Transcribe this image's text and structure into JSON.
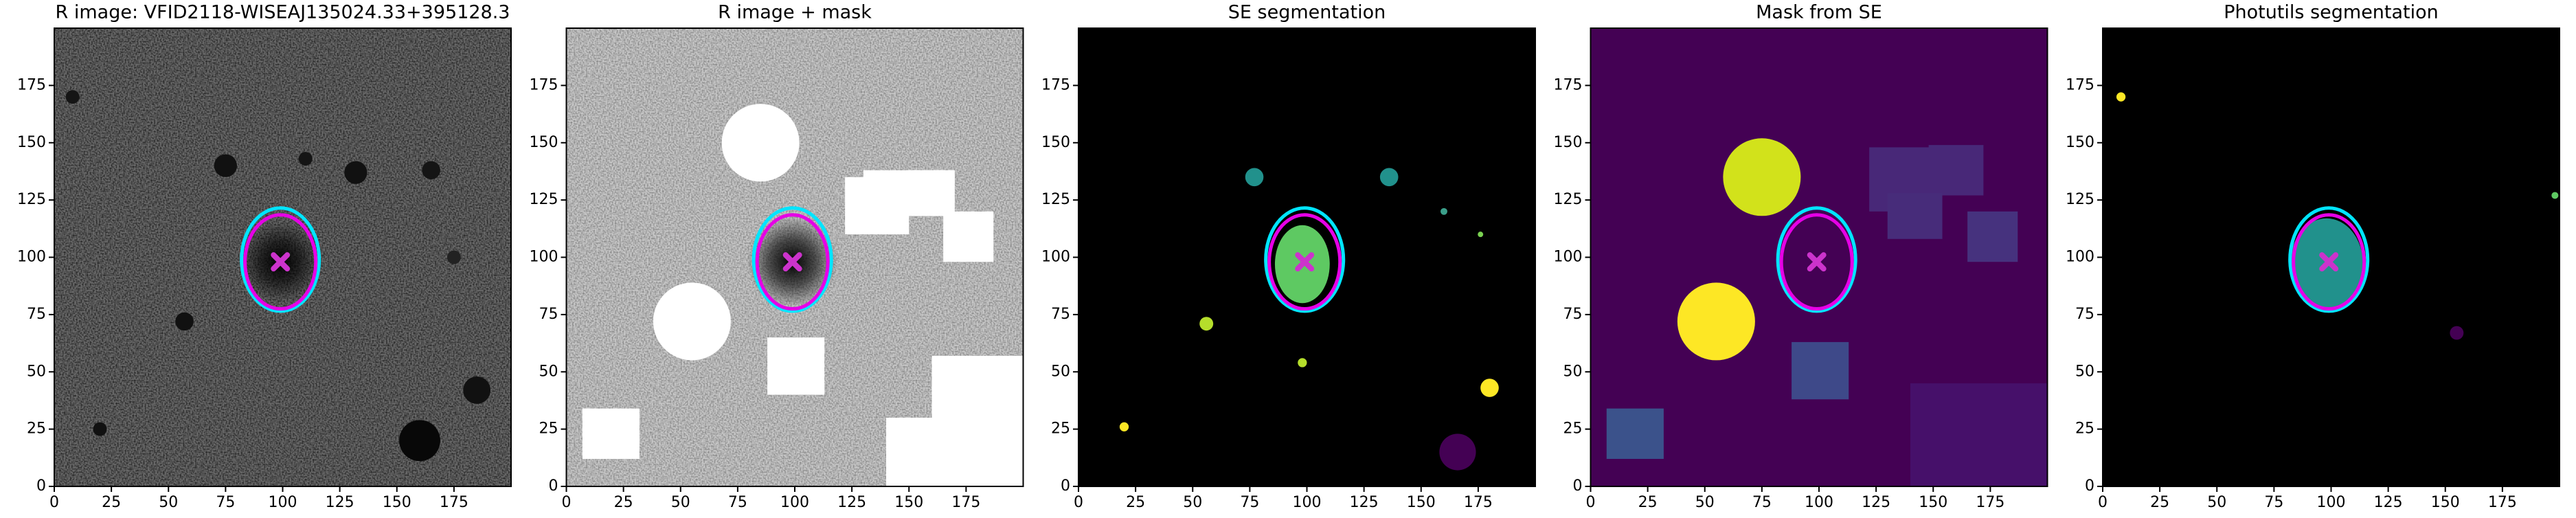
{
  "chart_data": [
    {
      "type": "image",
      "title": "R image: VFID2118-WISEAJ135024.33+395128.3",
      "xlim": [
        0,
        200
      ],
      "ylim": [
        0,
        200
      ],
      "xticks": [
        0,
        25,
        50,
        75,
        100,
        125,
        150,
        175
      ],
      "yticks": [
        0,
        25,
        50,
        75,
        100,
        125,
        150,
        175
      ],
      "ellipses": [
        {
          "x": 99,
          "y": 99,
          "rx": 17,
          "ry": 22.5,
          "color": "#00e5ff"
        },
        {
          "x": 99,
          "y": 98,
          "rx": 15.5,
          "ry": 20.5,
          "color": "#e600e6"
        }
      ],
      "marker": {
        "x": 99,
        "y": 98,
        "color": "#cc33cc"
      }
    },
    {
      "type": "image",
      "title": "R image + mask",
      "xlim": [
        0,
        200
      ],
      "ylim": [
        0,
        200
      ],
      "xticks": [
        0,
        25,
        50,
        75,
        100,
        125,
        150,
        175
      ],
      "yticks": [
        0,
        25,
        50,
        75,
        100,
        125,
        150,
        175
      ],
      "ellipses": [
        {
          "x": 99,
          "y": 99,
          "rx": 17,
          "ry": 22.5,
          "color": "#00e5ff"
        },
        {
          "x": 99,
          "y": 98,
          "rx": 15.5,
          "ry": 20.5,
          "color": "#e600e6"
        }
      ],
      "marker": {
        "x": 99,
        "y": 98,
        "color": "#cc33cc"
      }
    },
    {
      "type": "image",
      "title": "SE segmentation",
      "xlim": [
        0,
        200
      ],
      "ylim": [
        0,
        200
      ],
      "xticks": [
        0,
        25,
        50,
        75,
        100,
        125,
        150,
        175
      ],
      "yticks": [
        0,
        25,
        50,
        75,
        100,
        125,
        150,
        175
      ],
      "ellipses": [
        {
          "x": 99,
          "y": 99,
          "rx": 17,
          "ry": 22.5,
          "color": "#00e5ff"
        },
        {
          "x": 99,
          "y": 98,
          "rx": 15.5,
          "ry": 20.5,
          "color": "#e600e6"
        }
      ],
      "marker": {
        "x": 99,
        "y": 98,
        "color": "#cc33cc"
      }
    },
    {
      "type": "image",
      "title": "Mask from SE",
      "xlim": [
        0,
        200
      ],
      "ylim": [
        0,
        200
      ],
      "xticks": [
        0,
        25,
        50,
        75,
        100,
        125,
        150,
        175
      ],
      "yticks": [
        0,
        25,
        50,
        75,
        100,
        125,
        150,
        175
      ],
      "ellipses": [
        {
          "x": 99,
          "y": 99,
          "rx": 17,
          "ry": 22.5,
          "color": "#00e5ff"
        },
        {
          "x": 99,
          "y": 98,
          "rx": 15.5,
          "ry": 20.5,
          "color": "#e600e6"
        }
      ],
      "marker": {
        "x": 99,
        "y": 98,
        "color": "#cc33cc"
      }
    },
    {
      "type": "image",
      "title": "Photutils segmentation",
      "xlim": [
        0,
        200
      ],
      "ylim": [
        0,
        200
      ],
      "xticks": [
        0,
        25,
        50,
        75,
        100,
        125,
        150,
        175
      ],
      "yticks": [
        0,
        25,
        50,
        75,
        100,
        125,
        150,
        175
      ],
      "ellipses": [
        {
          "x": 99,
          "y": 99,
          "rx": 17,
          "ry": 22.5,
          "color": "#00e5ff"
        },
        {
          "x": 99,
          "y": 98,
          "rx": 15.5,
          "ry": 20.5,
          "color": "#e600e6"
        }
      ],
      "marker": {
        "x": 99,
        "y": 98,
        "color": "#cc33cc"
      }
    }
  ]
}
